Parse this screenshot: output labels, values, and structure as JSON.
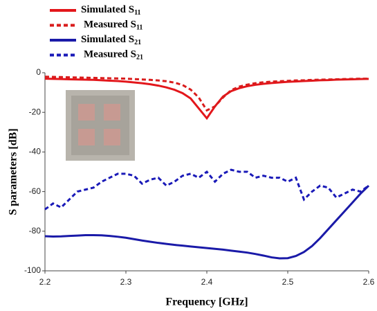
{
  "chart_data": {
    "type": "line",
    "xlabel": "Frequency [GHz]",
    "ylabel": "S parameters [dB]",
    "x": [
      2.2,
      2.21,
      2.22,
      2.23,
      2.24,
      2.25,
      2.26,
      2.27,
      2.28,
      2.29,
      2.3,
      2.31,
      2.32,
      2.33,
      2.34,
      2.35,
      2.36,
      2.37,
      2.38,
      2.39,
      2.4,
      2.41,
      2.42,
      2.43,
      2.44,
      2.45,
      2.46,
      2.47,
      2.48,
      2.49,
      2.5,
      2.51,
      2.52,
      2.53,
      2.54,
      2.55,
      2.56,
      2.57,
      2.58,
      2.59,
      2.6
    ],
    "series": [
      {
        "name": "Simulated S11",
        "color": "#e3161b",
        "style": "solid",
        "values": [
          -3,
          -3.1,
          -3.2,
          -3.3,
          -3.4,
          -3.5,
          -3.6,
          -3.8,
          -4,
          -4.2,
          -4.5,
          -4.9,
          -5.3,
          -5.8,
          -6.5,
          -7.4,
          -8.6,
          -10.3,
          -13,
          -18,
          -23,
          -17,
          -12,
          -9.3,
          -7.8,
          -6.8,
          -6.1,
          -5.6,
          -5.2,
          -4.9,
          -4.6,
          -4.4,
          -4.2,
          -4,
          -3.8,
          -3.7,
          -3.5,
          -3.4,
          -3.3,
          -3.2,
          -3.1
        ]
      },
      {
        "name": "Measured S11",
        "color": "#d91c1c",
        "style": "dashed",
        "values": [
          -2,
          -2.1,
          -2.2,
          -2.3,
          -2.4,
          -2.5,
          -2.6,
          -2.7,
          -2.8,
          -2.9,
          -3,
          -3.2,
          -3.4,
          -3.6,
          -3.9,
          -4.3,
          -5,
          -6.2,
          -8.5,
          -12.5,
          -19,
          -17,
          -12.5,
          -8.8,
          -7,
          -6,
          -5.3,
          -4.8,
          -4.5,
          -4.3,
          -4.1,
          -3.9,
          -3.8,
          -3.6,
          -3.5,
          -3.4,
          -3.3,
          -3.2,
          -3.1,
          -3,
          -3
        ]
      },
      {
        "name": "Simulated S21",
        "color": "#1a1aa8",
        "style": "solid",
        "values": [
          -82.5,
          -82.7,
          -82.6,
          -82.4,
          -82.2,
          -82,
          -82,
          -82.1,
          -82.4,
          -82.8,
          -83.3,
          -84,
          -84.7,
          -85.3,
          -85.9,
          -86.4,
          -86.9,
          -87.3,
          -87.7,
          -88.1,
          -88.5,
          -88.9,
          -89.3,
          -89.8,
          -90.3,
          -90.8,
          -91.5,
          -92.3,
          -93.2,
          -93.7,
          -93.6,
          -92.5,
          -90.5,
          -87.5,
          -83.5,
          -79,
          -74.5,
          -70,
          -65.5,
          -61,
          -57
        ]
      },
      {
        "name": "Measured S21",
        "color": "#1a1ab8",
        "style": "dashed",
        "values": [
          -69,
          -66,
          -68,
          -64,
          -60,
          -59,
          -58,
          -55,
          -53,
          -51,
          -51,
          -52,
          -56,
          -54,
          -53,
          -57,
          -55,
          -52,
          -51,
          -53,
          -50,
          -55,
          -51,
          -49,
          -50,
          -50,
          -53,
          -52,
          -53,
          -53,
          -55,
          -53,
          -64,
          -60,
          -57,
          -58,
          -63,
          -61,
          -59,
          -60,
          -57
        ]
      }
    ],
    "xlim": [
      2.2,
      2.6
    ],
    "xticks": [
      2.2,
      2.3,
      2.4,
      2.5,
      2.6
    ],
    "ylim": [
      -100,
      0
    ],
    "yticks": [
      0,
      -20,
      -40,
      -60,
      -80,
      -100
    ],
    "grid": false,
    "legend": "top-left"
  }
}
